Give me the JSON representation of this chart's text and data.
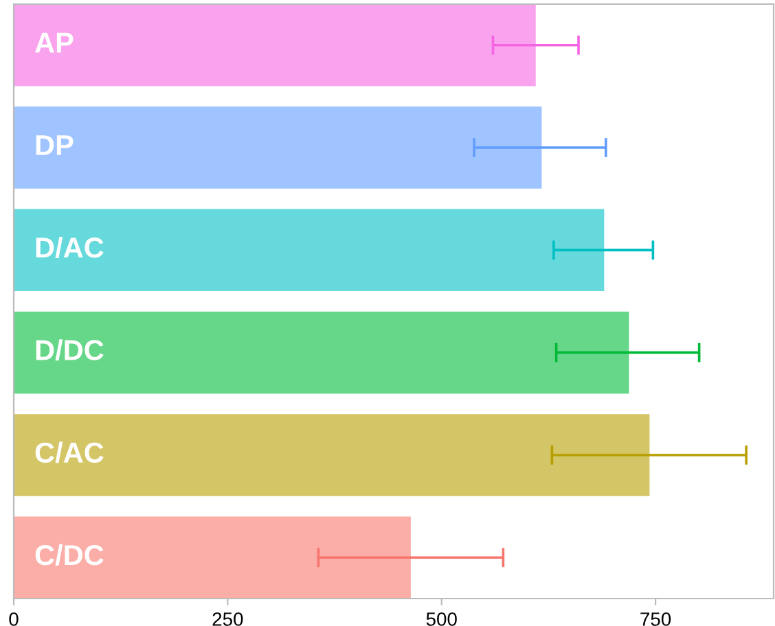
{
  "chart_data": {
    "type": "bar",
    "orientation": "horizontal",
    "categories": [
      "AP",
      "DP",
      "D/AC",
      "D/DC",
      "C/AC",
      "C/DC"
    ],
    "values": [
      610,
      617,
      690,
      719,
      743,
      464
    ],
    "errors": [
      [
        560,
        660
      ],
      [
        538,
        692
      ],
      [
        631,
        747
      ],
      [
        634,
        801
      ],
      [
        629,
        856
      ],
      [
        356,
        572
      ]
    ],
    "colors": [
      "#f564e3",
      "#619cff",
      "#00bfc4",
      "#00ba38",
      "#b79f00",
      "#f8766d"
    ],
    "xlim": [
      0,
      888
    ],
    "xticks": [
      0,
      250,
      500,
      750
    ],
    "grid": false,
    "legend": false
  }
}
